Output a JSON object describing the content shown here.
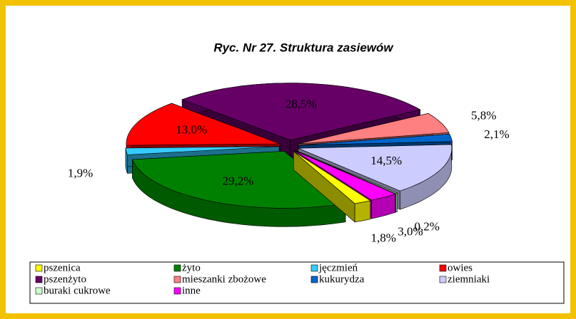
{
  "chart_data": {
    "type": "pie",
    "title": "Ryc. Nr 27. Struktura zasiewów",
    "categories": [
      "pszenica",
      "żyto",
      "jęczmień",
      "owies",
      "pszenżyto",
      "mieszanki zbożowe",
      "kukurydza",
      "ziemniaki",
      "buraki cukrowe",
      "inne"
    ],
    "values": [
      1.8,
      29.2,
      1.9,
      13.0,
      28.5,
      5.8,
      2.1,
      14.5,
      0.2,
      3.0
    ],
    "value_labels": [
      "1,8%",
      "29,2%",
      "1,9%",
      "13,0%",
      "28,5%",
      "5,8%",
      "2,1%",
      "14,5%",
      "0,2%",
      "3,0%"
    ],
    "colors": [
      "#ffff00",
      "#008000",
      "#33ccff",
      "#ff0000",
      "#660066",
      "#ff8080",
      "#0066cc",
      "#ccccff",
      "#ccffcc",
      "#ff00ff"
    ],
    "legend": "bottom"
  }
}
